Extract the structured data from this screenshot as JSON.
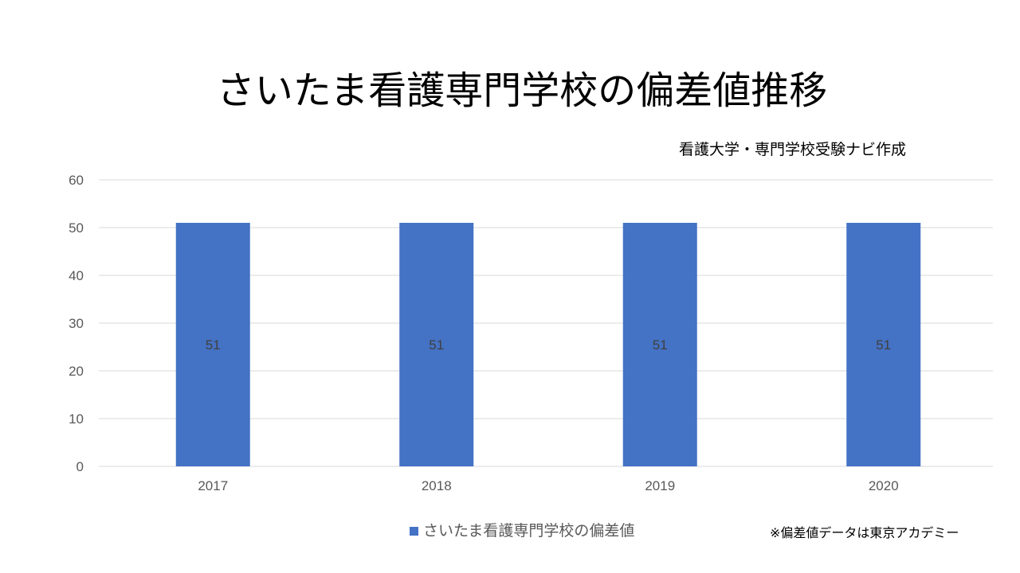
{
  "colors": {
    "bar": "#4472c4",
    "grid": "#d9d9d9",
    "axis_text": "#595959",
    "data_label": "#404040"
  },
  "header": {
    "title": "さいたま看護専門学校の偏差値推移",
    "credit": "看護大学・専門学校受験ナビ作成"
  },
  "footer": {
    "note": "※偏差値データは東京アカデミー"
  },
  "chart_data": {
    "type": "bar",
    "title": "さいたま看護専門学校の偏差値推移",
    "categories": [
      "2017",
      "2018",
      "2019",
      "2020"
    ],
    "series": [
      {
        "name": "さいたま看護専門学校の偏差値",
        "values": [
          51,
          51,
          51,
          51
        ]
      }
    ],
    "data_labels": [
      "51",
      "51",
      "51",
      "51"
    ],
    "yticks": [
      "0",
      "10",
      "20",
      "30",
      "40",
      "50",
      "60"
    ],
    "ylim": [
      0,
      60
    ],
    "grid": true,
    "legend": "bottom"
  }
}
